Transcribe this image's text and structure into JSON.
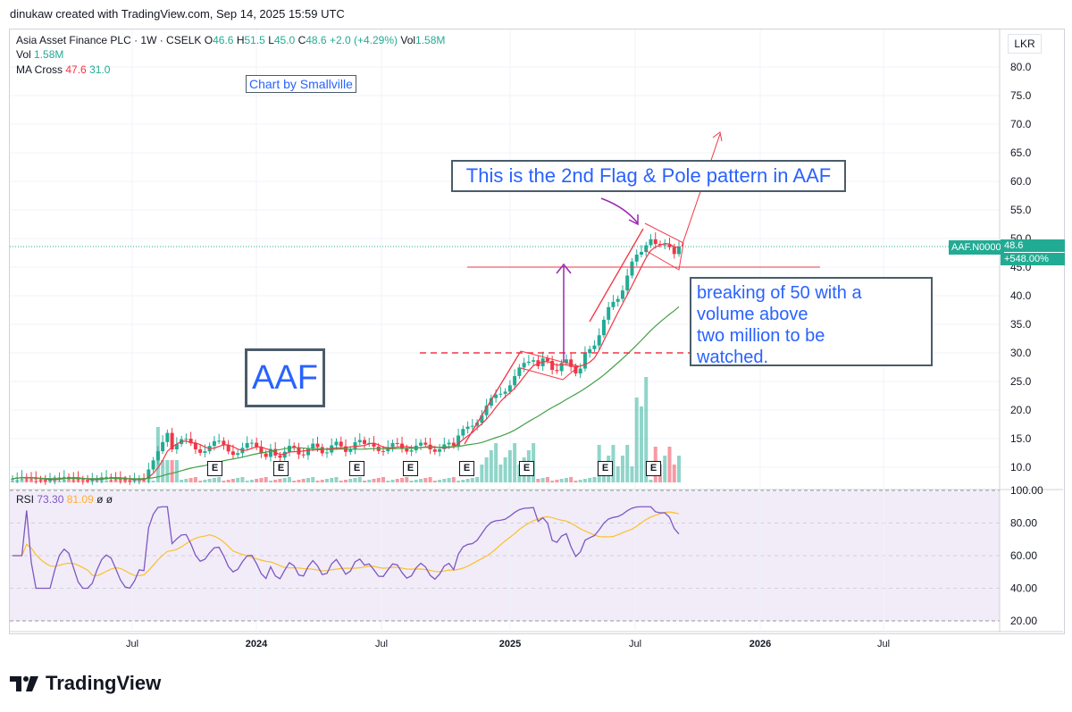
{
  "header": {
    "credit": "dinukaw created with TradingView.com, Sep 14, 2025 15:59 UTC"
  },
  "legend": {
    "symbol": "Asia Asset Finance PLC · 1W · CSELK",
    "o_label": "O",
    "o": "46.6",
    "h_label": "H",
    "h": "51.5",
    "l_label": "L",
    "l": "45.0",
    "c_label": "C",
    "c": "48.6",
    "change": "+2.0 (+4.29%)",
    "vol_label": "Vol",
    "vol": "1.58M",
    "vol2_label": "Vol",
    "vol2": "1.58M",
    "ma_label": "MA Cross",
    "ma_fast": "47.6",
    "ma_slow": "31.0",
    "rsi_label": "RSI",
    "rsi": "73.30",
    "rsi_ma": "81.09",
    "rsi_extra1": "ø",
    "rsi_extra2": "ø"
  },
  "currency": "LKR",
  "price_tag": {
    "symbol": "AAF.N0000",
    "price": "48.6",
    "change": "+548.00%"
  },
  "annotations": {
    "credit_box": "Chart by Smallville",
    "ticker_box": "AAF",
    "flag_box": "This is the 2nd Flag & Pole pattern in AAF",
    "breakout_lines": [
      "breaking of 50 with a",
      "volume above",
      "two million to be",
      "watched."
    ]
  },
  "earnings_marker": "E",
  "footer": {
    "brand": "TradingView"
  },
  "colors": {
    "up": "#22ab94",
    "down": "#f23645",
    "ma_fast": "#f23645",
    "ma_slow": "#43a047",
    "rsi": "#7e57c2",
    "rsi_ma": "#fbc02d",
    "annotation_text": "#2962ff"
  },
  "chart_data": {
    "type": "candlestick",
    "price_axis": {
      "ticks": [
        "80.0",
        "75.0",
        "70.0",
        "65.0",
        "60.0",
        "55.0",
        "50.0",
        "45.0",
        "40.0",
        "35.0",
        "30.0",
        "25.0",
        "20.0",
        "15.0",
        "10.0"
      ],
      "ylim": [
        7.5,
        82.5
      ]
    },
    "rsi_axis": {
      "ticks": [
        "100.00",
        "80.00",
        "60.00",
        "40.00",
        "20.00"
      ],
      "ylim": [
        15,
        100
      ]
    },
    "x_ticks": [
      "Jul",
      "2024",
      "Jul",
      "2025",
      "Jul",
      "2026",
      "Jul"
    ],
    "x_range": [
      "2023-01-01",
      "2026-12-31"
    ],
    "series": [
      {
        "name": "Price",
        "type": "candles",
        "dates": [
          "2025-07-04",
          "2025-09-12"
        ],
        "key_levels": {
          "last_close": 48.6,
          "pole_top": 51.5,
          "flag_low": 45.0,
          "pattern1_high": 30.0
        }
      },
      {
        "name": "MA Cross",
        "type": "line",
        "last": 47.6
      },
      {
        "name": "MA Cross",
        "type": "line",
        "last": 31.0
      },
      {
        "name": "RSI",
        "type": "line",
        "last": 73.3
      },
      {
        "name": "RSI",
        "type": "line",
        "last": 81.09
      }
    ],
    "lines": {
      "horizontal_red": 45.0,
      "horizontal_dashed": 30.0
    },
    "earnings_dates": [
      "2023-10",
      "2024-01",
      "2024-05",
      "2024-07",
      "2024-11",
      "2025-02",
      "2025-06",
      "2025-08"
    ]
  }
}
